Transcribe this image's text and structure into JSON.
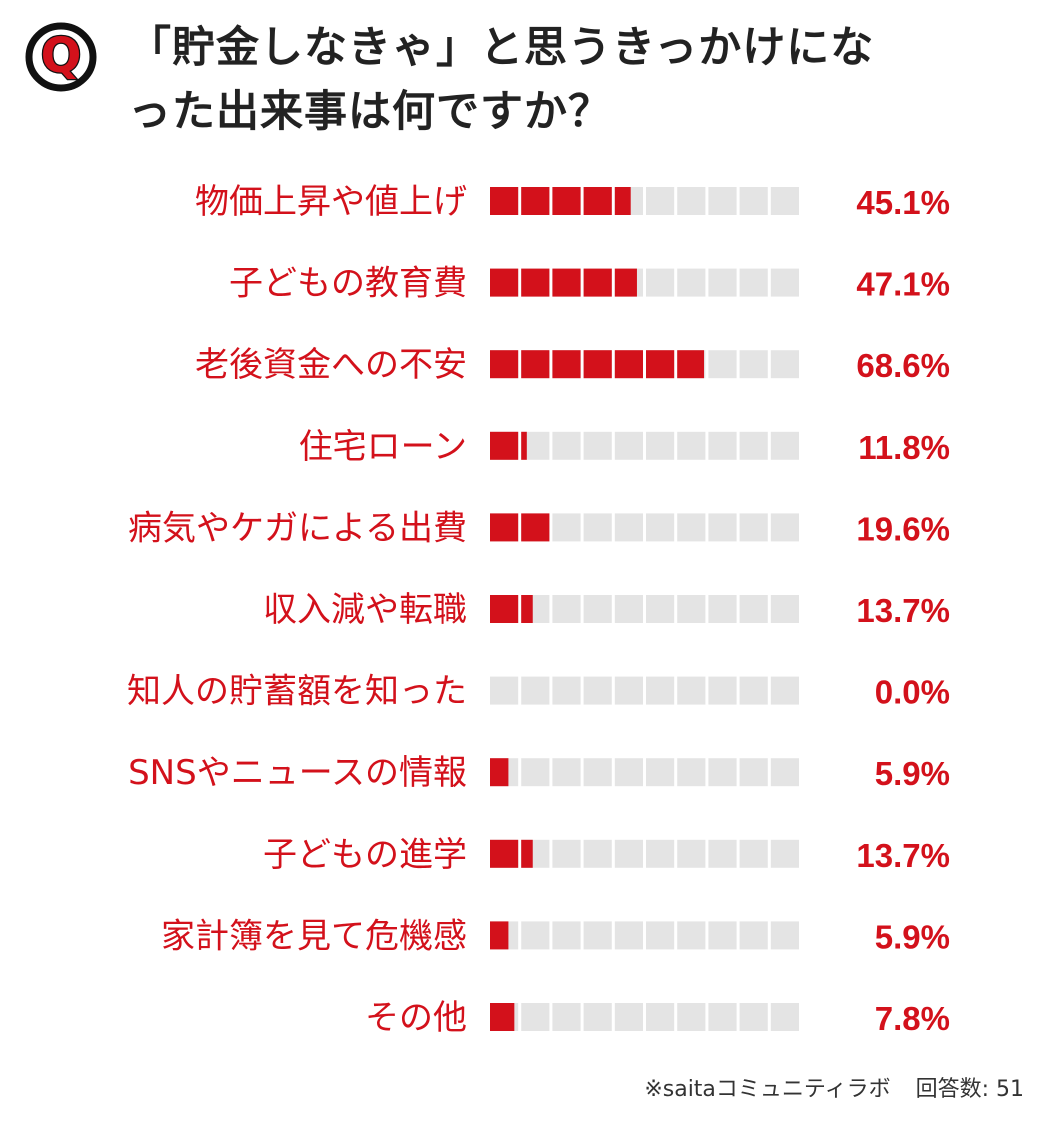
{
  "title": {
    "badge": "Q",
    "line1": "「貯金しなきゃ」と思うきっかけにな",
    "line2": "った出来事は何ですか？"
  },
  "colors": {
    "accent": "#d3111b",
    "track": "#e4e4e4",
    "title": "#222222"
  },
  "chart_data": {
    "type": "bar",
    "orientation": "horizontal",
    "segments": 10,
    "xlim": [
      0,
      100
    ],
    "unit": "%",
    "categories": [
      "物価上昇や値上げ",
      "子どもの教育費",
      "老後資金への不安",
      "住宅ローン",
      "病気やケガによる出費",
      "収入減や転職",
      "知人の貯蓄額を知った",
      "SNSやニュースの情報",
      "子どもの進学",
      "家計簿を見て危機感",
      "その他"
    ],
    "values": [
      45.1,
      47.1,
      68.6,
      11.8,
      19.6,
      13.7,
      0.0,
      5.9,
      13.7,
      5.9,
      7.8
    ],
    "value_labels": [
      "45.1%",
      "47.1%",
      "68.6%",
      "11.8%",
      "19.6%",
      "13.7%",
      "0.0%",
      "5.9%",
      "13.7%",
      "5.9%",
      "7.8%"
    ]
  },
  "footer": {
    "source": "※saitaコミュニティラボ",
    "respondents": "回答数: 51"
  }
}
